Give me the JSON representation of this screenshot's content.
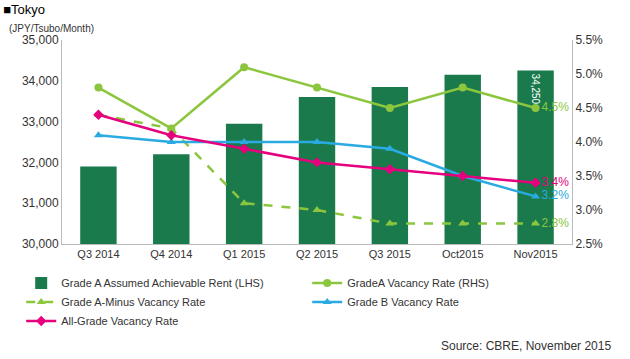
{
  "chart_data": {
    "type": "bar",
    "title": "■Tokyo",
    "y_label": "(JPY/Tsubo/Month)",
    "source": "Source: CBRE, November 2015",
    "categories": [
      "Q3 2014",
      "Q4 2014",
      "Q1 2015",
      "Q2 2015",
      "Q3 2015",
      "Oct2015",
      "Nov2015"
    ],
    "ylim": [
      30000,
      35000
    ],
    "yticks": [
      {
        "value": 30000,
        "label": "30,000"
      },
      {
        "value": 31000,
        "label": "31,000"
      },
      {
        "value": 32000,
        "label": "32,000"
      },
      {
        "value": 33000,
        "label": "33,000"
      },
      {
        "value": 34000,
        "label": "34,000"
      },
      {
        "value": 35000,
        "label": "35,000"
      }
    ],
    "y2lim": [
      2.5,
      5.5
    ],
    "y2ticks": [
      {
        "value": 2.5,
        "label": "2.5%"
      },
      {
        "value": 3.0,
        "label": "3.0%"
      },
      {
        "value": 3.5,
        "label": "3.5%"
      },
      {
        "value": 4.0,
        "label": "4.0%"
      },
      {
        "value": 4.5,
        "label": "4.5%"
      },
      {
        "value": 5.0,
        "label": "5.0%"
      },
      {
        "value": 5.5,
        "label": "5.5%"
      }
    ],
    "grid": false,
    "legend": "bottom",
    "series": [
      {
        "name": "Grade A Assumed Achievable Rent (LHS)",
        "type": "bar",
        "color": "#1a7a4c",
        "values": [
          31900,
          32200,
          32950,
          33600,
          33850,
          34150,
          34250
        ],
        "value_labels": [
          null,
          null,
          null,
          null,
          null,
          null,
          "34,250"
        ]
      },
      {
        "name": "GradeA Vacancy Rate (RHS)",
        "type": "line",
        "axis": "y2",
        "color": "#8cc63e",
        "marker": "circle",
        "line_style": "solid",
        "values": [
          4.8,
          4.2,
          5.1,
          4.8,
          4.5,
          4.8,
          4.5
        ],
        "value_labels": [
          null,
          null,
          null,
          null,
          null,
          null,
          "4.5%"
        ]
      },
      {
        "name": "Grade A-Minus Vacancy Rate",
        "type": "line",
        "axis": "y2",
        "color": "#8cc63e",
        "marker": "triangle",
        "line_style": "dashed",
        "values": [
          4.4,
          4.2,
          3.1,
          3.0,
          2.8,
          2.8,
          2.8
        ],
        "value_labels": [
          null,
          null,
          null,
          null,
          null,
          null,
          "2.8%"
        ]
      },
      {
        "name": "Grade B Vacancy Rate",
        "type": "line",
        "axis": "y2",
        "color": "#29abe2",
        "marker": "triangle",
        "line_style": "solid",
        "values": [
          4.1,
          4.0,
          4.0,
          4.0,
          3.9,
          3.5,
          3.2
        ],
        "value_labels": [
          null,
          null,
          null,
          null,
          null,
          null,
          "3.2%"
        ]
      },
      {
        "name": "All-Grade Vacancy Rate",
        "type": "line",
        "axis": "y2",
        "color": "#e6007e",
        "marker": "diamond",
        "line_style": "solid",
        "values": [
          4.4,
          4.1,
          3.9,
          3.7,
          3.6,
          3.5,
          3.4
        ],
        "value_labels": [
          null,
          null,
          null,
          null,
          null,
          null,
          "3.4%"
        ]
      }
    ]
  }
}
